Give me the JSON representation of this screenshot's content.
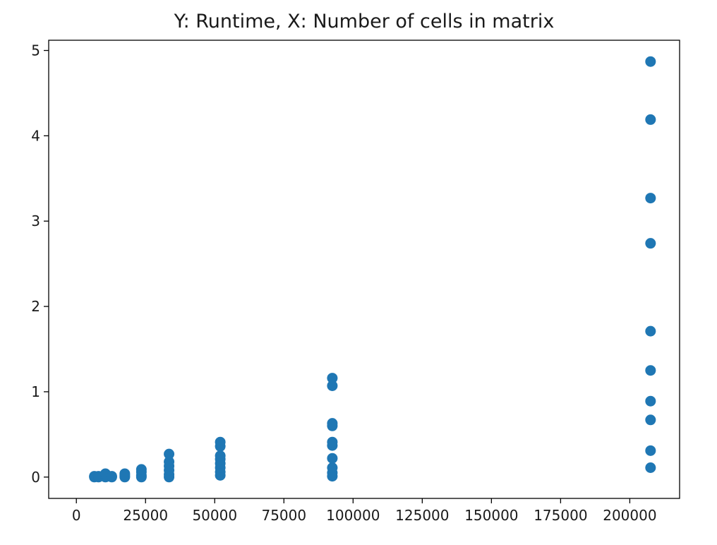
{
  "chart_data": {
    "type": "scatter",
    "title": "Y: Runtime, X: Number of cells in matrix",
    "xlabel": "",
    "ylabel": "",
    "xlim": [
      -10000,
      218000
    ],
    "ylim": [
      -0.25,
      5.12
    ],
    "xticks": [
      0,
      25000,
      50000,
      75000,
      100000,
      125000,
      150000,
      175000,
      200000
    ],
    "yticks": [
      0,
      1,
      2,
      3,
      4,
      5
    ],
    "grid": false,
    "marker_color": "#1f77b4",
    "series": [
      {
        "points": [
          {
            "x": 6500,
            "y": 0.0
          },
          {
            "x": 6500,
            "y": 0.01
          },
          {
            "x": 8000,
            "y": 0.0
          },
          {
            "x": 8000,
            "y": 0.01
          },
          {
            "x": 10500,
            "y": 0.0
          },
          {
            "x": 10500,
            "y": 0.02
          },
          {
            "x": 10500,
            "y": 0.04
          },
          {
            "x": 12800,
            "y": 0.0
          },
          {
            "x": 12800,
            "y": 0.01
          },
          {
            "x": 17500,
            "y": 0.0
          },
          {
            "x": 17500,
            "y": 0.02
          },
          {
            "x": 17500,
            "y": 0.04
          },
          {
            "x": 23500,
            "y": 0.0
          },
          {
            "x": 23500,
            "y": 0.02
          },
          {
            "x": 23500,
            "y": 0.06
          },
          {
            "x": 23500,
            "y": 0.09
          },
          {
            "x": 33500,
            "y": 0.0
          },
          {
            "x": 33500,
            "y": 0.03
          },
          {
            "x": 33500,
            "y": 0.08
          },
          {
            "x": 33500,
            "y": 0.13
          },
          {
            "x": 33500,
            "y": 0.18
          },
          {
            "x": 33500,
            "y": 0.27
          },
          {
            "x": 52000,
            "y": 0.02
          },
          {
            "x": 52000,
            "y": 0.06
          },
          {
            "x": 52000,
            "y": 0.11
          },
          {
            "x": 52000,
            "y": 0.16
          },
          {
            "x": 52000,
            "y": 0.21
          },
          {
            "x": 52000,
            "y": 0.25
          },
          {
            "x": 52000,
            "y": 0.36
          },
          {
            "x": 52000,
            "y": 0.41
          },
          {
            "x": 92500,
            "y": 0.01
          },
          {
            "x": 92500,
            "y": 0.05
          },
          {
            "x": 92500,
            "y": 0.11
          },
          {
            "x": 92500,
            "y": 0.22
          },
          {
            "x": 92500,
            "y": 0.37
          },
          {
            "x": 92500,
            "y": 0.41
          },
          {
            "x": 92500,
            "y": 0.6
          },
          {
            "x": 92500,
            "y": 0.63
          },
          {
            "x": 92500,
            "y": 1.07
          },
          {
            "x": 92500,
            "y": 1.16
          },
          {
            "x": 207500,
            "y": 0.11
          },
          {
            "x": 207500,
            "y": 0.31
          },
          {
            "x": 207500,
            "y": 0.67
          },
          {
            "x": 207500,
            "y": 0.89
          },
          {
            "x": 207500,
            "y": 1.25
          },
          {
            "x": 207500,
            "y": 1.71
          },
          {
            "x": 207500,
            "y": 2.74
          },
          {
            "x": 207500,
            "y": 3.27
          },
          {
            "x": 207500,
            "y": 4.19
          },
          {
            "x": 207500,
            "y": 4.87
          }
        ]
      }
    ]
  }
}
